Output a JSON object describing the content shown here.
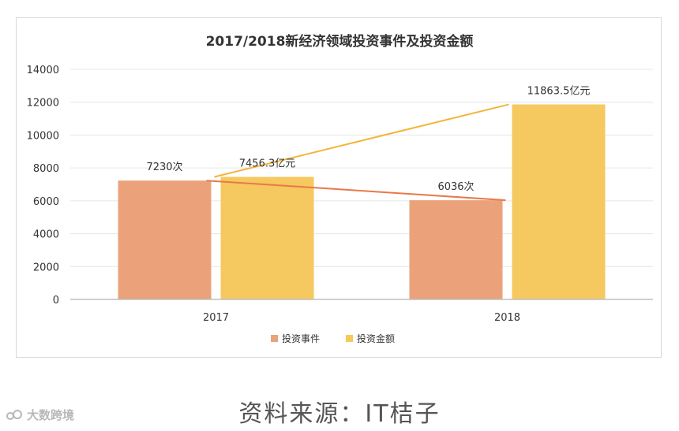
{
  "chart_data": {
    "type": "bar",
    "title": "2017/2018新经济领域投资事件及投资金额",
    "categories": [
      "2017",
      "2018"
    ],
    "ylim": [
      0,
      14000
    ],
    "yticks": [
      0,
      2000,
      4000,
      6000,
      8000,
      10000,
      12000,
      14000
    ],
    "grid": true,
    "legend_position": "bottom",
    "series": [
      {
        "name": "投资事件",
        "values": [
          7230,
          6036
        ],
        "labels": [
          "7230次",
          "6036次"
        ],
        "bar_color": "#eba27a",
        "line_color": "#e8784a"
      },
      {
        "name": "投资金额",
        "values": [
          7456.3,
          11863.5
        ],
        "labels": [
          "7456.3亿元",
          "11863.5亿元"
        ],
        "bar_color": "#f5c95f",
        "line_color": "#f2b53a"
      }
    ]
  },
  "source_note": "资料来源：IT桔子",
  "watermark": {
    "text": "大数跨境",
    "icon": "watermark-logo-icon"
  }
}
